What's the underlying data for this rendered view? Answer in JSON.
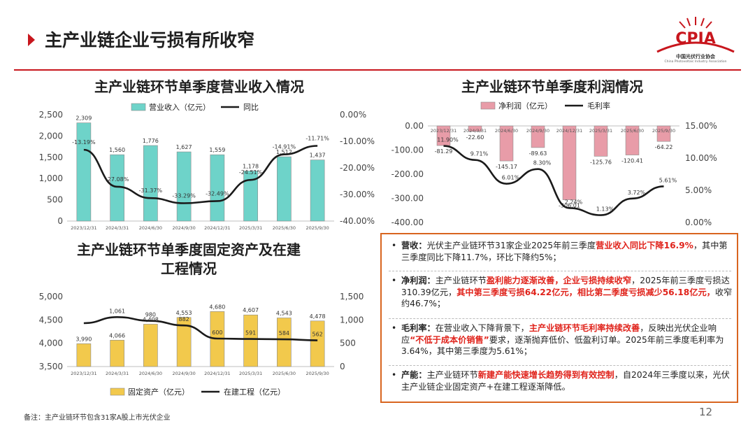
{
  "slide": {
    "title": "主产业链企业亏损有所收窄",
    "page_number": "12",
    "footnote": "备注：主产业链环节包含31家A股上市光伏企业"
  },
  "logo": {
    "name": "CPIA",
    "subtitle": "中国光伏行业协会",
    "subtitle_en": "China Photovoltaic Industry Association"
  },
  "colors": {
    "accent": "#c8161d",
    "teal": "#6ed3c9",
    "pink": "#e89ca8",
    "gold": "#f2c94c",
    "panel_border": "#d8651f",
    "highlight": "#e0231b"
  },
  "chart_data": [
    {
      "id": "revenue",
      "type": "bar+line",
      "title": "主产业链环节单季度营业收入情况",
      "categories": [
        "2023/12/31",
        "2024/3/31",
        "2024/6/30",
        "2024/9/30",
        "2024/12/31",
        "2025/3/31",
        "2025/6/30",
        "2025/9/30"
      ],
      "series": [
        {
          "name": "营业收入（亿元）",
          "type": "bar",
          "axis": "left",
          "values": [
            2309,
            1560,
            1776,
            1627,
            1559,
            1178,
            1512,
            1437
          ],
          "labels": [
            "2,309",
            "1,560",
            "1,776",
            "1,627",
            "1,559",
            "1,178",
            "1,512",
            "1,437"
          ]
        },
        {
          "name": "同比",
          "type": "line",
          "axis": "right",
          "values": [
            -13.19,
            -27.08,
            -31.37,
            -33.29,
            -32.49,
            -24.51,
            -14.91,
            -11.71
          ],
          "labels": [
            "-13.19%",
            "-27.08%",
            "-31.37%",
            "-33.29%",
            "-32.49%",
            "-24.51%",
            "-14.91%",
            "-11.71%"
          ]
        }
      ],
      "y_left": {
        "min": 0,
        "max": 2500,
        "ticks": [
          "0",
          "500",
          "1,000",
          "1,500",
          "2,000",
          "2,500"
        ]
      },
      "y_right": {
        "min": -40,
        "max": 0,
        "ticks": [
          "-40.00%",
          "-30.00%",
          "-20.00%",
          "-10.00%",
          "0.00%"
        ]
      },
      "legend": "top",
      "grid": false
    },
    {
      "id": "profit",
      "type": "bar+line",
      "title": "主产业链环节单季度利润情况",
      "categories": [
        "2023/12/31",
        "2024/3/31",
        "2024/6/30",
        "2024/9/30",
        "2024/12/31",
        "2025/3/31",
        "2025/6/30",
        "2025/9/30"
      ],
      "series": [
        {
          "name": "净利润（亿元）",
          "type": "bar",
          "axis": "left",
          "values": [
            -81.29,
            -22.6,
            -145.17,
            -89.63,
            -306.0,
            -125.76,
            -120.41,
            -64.22
          ],
          "labels": [
            "-81.29",
            "-22.60",
            "-145.17",
            "-89.63",
            "-306.01",
            "-125.76",
            "-120.41",
            "-64.22"
          ]
        },
        {
          "name": "毛利率",
          "type": "line",
          "axis": "right",
          "values": [
            11.9,
            9.71,
            6.01,
            8.3,
            2.24,
            1.13,
            3.72,
            5.61
          ],
          "labels": [
            "11.90%",
            "9.71%",
            "6.01%",
            "8.30%",
            "2.24%",
            "1.13%",
            "3.72%",
            "5.61%"
          ]
        }
      ],
      "y_left": {
        "min": -400,
        "max": 0,
        "ticks": [
          "-400.00",
          "-300.00",
          "-200.00",
          "-100.00",
          "0.00"
        ]
      },
      "y_right": {
        "min": 0,
        "max": 15,
        "ticks": [
          "0.00%",
          "5.00%",
          "10.00%",
          "15.00%"
        ]
      },
      "legend": "top",
      "grid": false
    },
    {
      "id": "assets",
      "type": "bar+line",
      "title_lines": [
        "主产业链环节单季度固定资产及在建",
        "工程情况"
      ],
      "categories": [
        "2023/12/31",
        "2024/3/31",
        "2024/6/30",
        "2024/9/30",
        "2024/12/31",
        "2025/3/31",
        "2025/6/30",
        "2025/9/30"
      ],
      "series": [
        {
          "name": "固定资产（亿元）",
          "type": "bar",
          "axis": "left",
          "values": [
            3990,
            4066,
            4408,
            4553,
            4680,
            4607,
            4543,
            4478
          ],
          "labels": [
            "3,990",
            "4,066",
            "4,408",
            "4,553",
            "4,680",
            "4,607",
            "4,543",
            "4,478"
          ]
        },
        {
          "name": "在建工程（亿元）",
          "type": "line",
          "axis": "right",
          "values": [
            930,
            1061,
            980,
            882,
            600,
            591,
            584,
            562
          ],
          "labels": [
            "",
            "1,061",
            "980",
            "882",
            "600",
            "591",
            "584",
            "562"
          ]
        }
      ],
      "y_left": {
        "min": 3500,
        "max": 5000,
        "ticks": [
          "3,500",
          "4,000",
          "4,500",
          "5,000"
        ]
      },
      "y_right": {
        "min": 0,
        "max": 1500,
        "ticks": [
          "0",
          "500",
          "1,000",
          "1,500"
        ]
      },
      "legend": "bottom",
      "grid": false
    }
  ],
  "bullets": [
    {
      "dot": "•",
      "head": "营收：",
      "segments": [
        {
          "t": "光伏主产业链环节31家企业2025年前三季度",
          "r": false
        },
        {
          "t": "营业收入同比下降16.9%",
          "r": true
        },
        {
          "t": "，其中第三季度同比下降11.7%，环比下降约5%；",
          "r": false
        }
      ]
    },
    {
      "dot": "•",
      "head": "净利润：",
      "segments": [
        {
          "t": "主产业链环节",
          "r": false
        },
        {
          "t": "盈利能力逐渐改善，企业亏损持续收窄",
          "r": true
        },
        {
          "t": "，2025年前三季度亏损达310.39亿元，",
          "r": false
        },
        {
          "t": "其中第三季度亏损64.22亿元，相比第二季度亏损减少56.18亿元，",
          "r": true
        },
        {
          "t": "收窄约46.7%；",
          "r": false
        }
      ]
    },
    {
      "dot": "•",
      "head": "毛利率：",
      "segments": [
        {
          "t": "在营业收入下降背景下，",
          "r": false
        },
        {
          "t": "主产业链环节毛利率持续改善",
          "r": true
        },
        {
          "t": "，反映出光伏企业响应",
          "r": false
        },
        {
          "t": "“不低于成本价销售”",
          "r": true
        },
        {
          "t": "要求，逐渐抛弃低价、低盈利订单。2025年前三季度毛利率为3.64%，其中第三季度为5.61%；",
          "r": false
        }
      ]
    },
    {
      "dot": "•",
      "head": "产能：",
      "segments": [
        {
          "t": "主产业链环节",
          "r": false
        },
        {
          "t": "新建产能快速增长趋势得到有效控制",
          "r": true
        },
        {
          "t": "，自2024年三季度以来，光伏主产业链企业固定资产+在建工程逐渐降低。",
          "r": false
        }
      ]
    }
  ]
}
